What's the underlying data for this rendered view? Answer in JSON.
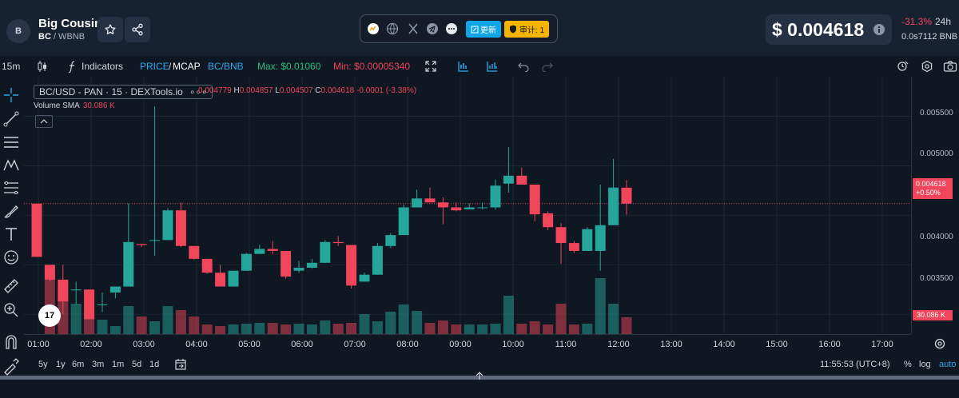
{
  "token": {
    "avatar": "B",
    "name": "Big Cousin",
    "symbol": "BC",
    "quote": " / WBNB"
  },
  "header_icons": [
    "star-icon",
    "share-icon"
  ],
  "badges": {
    "update_label": "更新",
    "audit_label": "审计: 1"
  },
  "price": {
    "value": "$ 0.004618",
    "change": "-31.3%",
    "period": "24h",
    "bnb": "0.0s7112  BNB"
  },
  "toolbar": {
    "interval": "15m",
    "indicators": "Indicators",
    "price_label": "PRICE",
    "mcap_label": "MCAP",
    "separator": "/",
    "pair_toggle": "BC/BNB",
    "max": "Max: $0.01060",
    "min": "Min: $0.00005340"
  },
  "legend": {
    "symbol": "BC/USD - PAN · 15 · DEXTools.io",
    "more": "∘∘∘",
    "o_key": "O",
    "o_val": "0.004779",
    "h_key": "H",
    "h_val": "0.004857",
    "l_key": "L",
    "l_val": "0.004507",
    "c_key": "C",
    "c_val": "0.004618",
    "chg": "-0.0001 (-3.38%)",
    "volume_label": "Volume SMA",
    "volume_val": "30.086 K"
  },
  "yaxis": {
    "ticks": [
      "0.005500",
      "0.005000",
      "0.004000",
      "0.003500"
    ],
    "current": "0.004618",
    "current_pct": "+0.50%",
    "volume_tag": "30.086 K"
  },
  "xaxis": {
    "ticks": [
      "01:00",
      "02:00",
      "03:00",
      "04:00",
      "05:00",
      "06:00",
      "07:00",
      "08:00",
      "09:00",
      "10:00",
      "11:00",
      "12:00",
      "13:00",
      "14:00",
      "15:00",
      "16:00",
      "17:00"
    ]
  },
  "bottombar": {
    "ranges": [
      "5y",
      "1y",
      "6m",
      "3m",
      "1m",
      "5d",
      "1d"
    ],
    "clock": "11:55:53 (UTC+8)",
    "pct": "%",
    "log": "log",
    "auto": "auto"
  },
  "colors": {
    "up": "#26a69a",
    "down": "#f0455a",
    "accent": "#2ba8f0",
    "max": "#26c281",
    "min": "#f0455a"
  },
  "chart_data": {
    "type": "candlestick",
    "price_range": [
      0.0033,
      0.0059
    ],
    "candles": [
      [
        0.004618,
        0.004618,
        0.00408,
        0.00408
      ],
      [
        0.004,
        0.004,
        0.00383,
        0.00385
      ],
      [
        0.00385,
        0.004,
        0.0035,
        0.00363
      ],
      [
        0.00375,
        0.00383,
        0.0036,
        0.00375
      ],
      [
        0.00375,
        0.00375,
        0.00345,
        0.00345
      ],
      [
        0.0036,
        0.00372,
        0.00352,
        0.0036
      ],
      [
        0.00372,
        0.00378,
        0.00366,
        0.00378
      ],
      [
        0.00378,
        0.00462,
        0.00378,
        0.00423
      ],
      [
        0.00421,
        0.00421,
        0.00418,
        0.0042
      ],
      [
        0.00425,
        0.0056,
        0.00409,
        0.00425
      ],
      [
        0.00425,
        0.00457,
        0.00425,
        0.00455
      ],
      [
        0.00455,
        0.00463,
        0.00418,
        0.00419
      ],
      [
        0.00419,
        0.00419,
        0.00405,
        0.00406
      ],
      [
        0.00406,
        0.00406,
        0.00391,
        0.00392
      ],
      [
        0.00392,
        0.004,
        0.00378,
        0.00378
      ],
      [
        0.00378,
        0.00394,
        0.00378,
        0.00394
      ],
      [
        0.00394,
        0.00412,
        0.00394,
        0.00411
      ],
      [
        0.00411,
        0.0042,
        0.00411,
        0.00416
      ],
      [
        0.00416,
        0.00424,
        0.00411,
        0.00414
      ],
      [
        0.00414,
        0.00414,
        0.00386,
        0.00388
      ],
      [
        0.00394,
        0.00404,
        0.00392,
        0.00397
      ],
      [
        0.00397,
        0.00406,
        0.00396,
        0.00402
      ],
      [
        0.00402,
        0.00425,
        0.00402,
        0.00423
      ],
      [
        0.00423,
        0.00429,
        0.00419,
        0.00422
      ],
      [
        0.0042,
        0.0042,
        0.00376,
        0.00379
      ],
      [
        0.00383,
        0.00392,
        0.00383,
        0.0039
      ],
      [
        0.0039,
        0.00422,
        0.0039,
        0.00419
      ],
      [
        0.00419,
        0.00432,
        0.00417,
        0.0043
      ],
      [
        0.0043,
        0.00461,
        0.0043,
        0.00458
      ],
      [
        0.00458,
        0.00476,
        0.00458,
        0.00467
      ],
      [
        0.00467,
        0.00478,
        0.00463,
        0.00463
      ],
      [
        0.00463,
        0.00468,
        0.00441,
        0.00458
      ],
      [
        0.00458,
        0.00463,
        0.00454,
        0.00455
      ],
      [
        0.00456,
        0.00462,
        0.00456,
        0.00458
      ],
      [
        0.00458,
        0.00463,
        0.00456,
        0.00458
      ],
      [
        0.00458,
        0.00486,
        0.00456,
        0.0048
      ],
      [
        0.00482,
        0.00519,
        0.00473,
        0.0049
      ],
      [
        0.0049,
        0.00498,
        0.00481,
        0.00481
      ],
      [
        0.00481,
        0.00481,
        0.00444,
        0.00451
      ],
      [
        0.00452,
        0.00454,
        0.00435,
        0.00438
      ],
      [
        0.00438,
        0.00442,
        0.00401,
        0.00422
      ],
      [
        0.00422,
        0.00424,
        0.00412,
        0.00414
      ],
      [
        0.00414,
        0.00438,
        0.00414,
        0.00436
      ],
      [
        0.00414,
        0.00481,
        0.00394,
        0.0044
      ],
      [
        0.0044,
        0.00507,
        0.0044,
        0.00478
      ],
      [
        0.004779,
        0.004857,
        0.004507,
        0.004618
      ]
    ],
    "volumes": [
      0,
      78,
      65,
      38,
      28,
      18,
      10,
      35,
      22,
      16,
      35,
      30,
      22,
      12,
      10,
      12,
      13,
      14,
      14,
      12,
      13,
      12,
      17,
      13,
      14,
      25,
      16,
      28,
      37,
      29,
      14,
      17,
      12,
      12,
      12,
      13,
      48,
      13,
      16,
      12,
      38,
      12,
      13,
      70,
      38,
      21
    ],
    "volume_max": 80
  }
}
